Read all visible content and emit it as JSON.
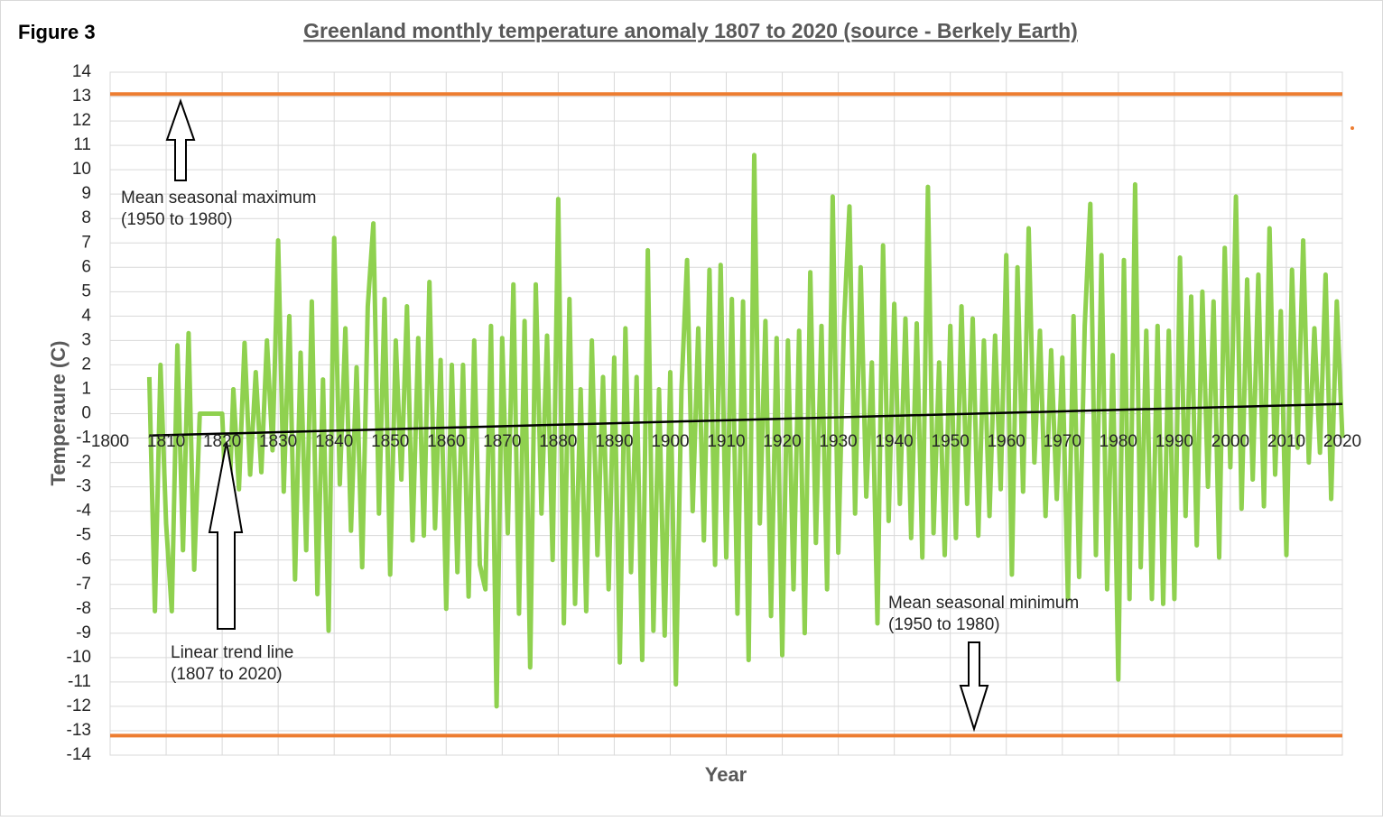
{
  "chart_data": {
    "type": "line",
    "figure_label": "Figure 3",
    "title": "Greenland monthly temperature anomaly 1807 to 2020 (source - Berkely Earth)",
    "xlabel": "Year",
    "ylabel": "Temperaure (C)",
    "xlim": [
      1800,
      2020
    ],
    "xticks": [
      1800,
      1810,
      1820,
      1830,
      1840,
      1850,
      1860,
      1870,
      1880,
      1890,
      1900,
      1910,
      1920,
      1930,
      1940,
      1950,
      1960,
      1970,
      1980,
      1990,
      2000,
      2010,
      2020
    ],
    "ylim": [
      -14,
      14
    ],
    "yticks": [
      -14,
      -13,
      -12,
      -11,
      -10,
      -9,
      -8,
      -7,
      -6,
      -5,
      -4,
      -3,
      -2,
      -1,
      0,
      1,
      2,
      3,
      4,
      5,
      6,
      7,
      8,
      9,
      10,
      11,
      12,
      13,
      14
    ],
    "grid": true,
    "series": [
      {
        "color": "#8fd14f",
        "x": [
          1807,
          1808,
          1809,
          1810,
          1811,
          1812,
          1813,
          1814,
          1815,
          1816,
          1817,
          1818,
          1819,
          1820,
          1821,
          1822,
          1823,
          1824,
          1825,
          1826,
          1827,
          1828,
          1829,
          1830,
          1831,
          1832,
          1833,
          1834,
          1835,
          1836,
          1837,
          1838,
          1839,
          1840,
          1841,
          1842,
          1843,
          1844,
          1845,
          1846,
          1847,
          1848,
          1849,
          1850,
          1851,
          1852,
          1853,
          1854,
          1855,
          1856,
          1857,
          1858,
          1859,
          1860,
          1861,
          1862,
          1863,
          1864,
          1865,
          1866,
          1867,
          1868,
          1869,
          1870,
          1871,
          1872,
          1873,
          1874,
          1875,
          1876,
          1877,
          1878,
          1879,
          1880,
          1881,
          1882,
          1883,
          1884,
          1885,
          1886,
          1887,
          1888,
          1889,
          1890,
          1891,
          1892,
          1893,
          1894,
          1895,
          1896,
          1897,
          1898,
          1899,
          1900,
          1901,
          1902,
          1903,
          1904,
          1905,
          1906,
          1907,
          1908,
          1909,
          1910,
          1911,
          1912,
          1913,
          1914,
          1915,
          1916,
          1917,
          1918,
          1919,
          1920,
          1921,
          1922,
          1923,
          1924,
          1925,
          1926,
          1927,
          1928,
          1929,
          1930,
          1931,
          1932,
          1933,
          1934,
          1935,
          1936,
          1937,
          1938,
          1939,
          1940,
          1941,
          1942,
          1943,
          1944,
          1945,
          1946,
          1947,
          1948,
          1949,
          1950,
          1951,
          1952,
          1953,
          1954,
          1955,
          1956,
          1957,
          1958,
          1959,
          1960,
          1961,
          1962,
          1963,
          1964,
          1965,
          1966,
          1967,
          1968,
          1969,
          1970,
          1971,
          1972,
          1973,
          1974,
          1975,
          1976,
          1977,
          1978,
          1979,
          1980,
          1981,
          1982,
          1983,
          1984,
          1985,
          1986,
          1987,
          1988,
          1989,
          1990,
          1991,
          1992,
          1993,
          1994,
          1995,
          1996,
          1997,
          1998,
          1999,
          2000,
          2001,
          2002,
          2003,
          2004,
          2005,
          2006,
          2007,
          2008,
          2009,
          2010,
          2011,
          2012,
          2013,
          2014,
          2015,
          2016,
          2017,
          2018,
          2019,
          2020
        ],
        "values": [
          1.5,
          -8.1,
          2.0,
          -4.5,
          -8.1,
          2.8,
          -5.6,
          3.3,
          -6.4,
          0,
          0,
          0,
          0,
          0,
          -5.3,
          1.0,
          -3.1,
          2.9,
          -2.5,
          1.7,
          -2.4,
          3.0,
          -1.5,
          7.1,
          -3.2,
          4.0,
          -6.8,
          2.5,
          -5.6,
          4.6,
          -7.4,
          1.4,
          -8.9,
          7.2,
          -2.9,
          3.5,
          -4.8,
          1.9,
          -6.3,
          4.4,
          7.8,
          -4.1,
          4.7,
          -6.6,
          3.0,
          -2.7,
          4.4,
          -5.2,
          3.1,
          -5.0,
          5.4,
          -4.7,
          2.2,
          -8.0,
          2.0,
          -6.5,
          2.0,
          -7.5,
          3.0,
          -6.2,
          -7.2,
          3.6,
          -12.0,
          3.1,
          -4.9,
          5.3,
          -8.2,
          3.8,
          -10.4,
          5.3,
          -4.1,
          3.2,
          -6.0,
          8.8,
          -8.6,
          4.7,
          -7.8,
          1.0,
          -8.1,
          3.0,
          -5.8,
          1.5,
          -7.2,
          2.3,
          -10.2,
          3.5,
          -6.5,
          1.5,
          -10.1,
          6.7,
          -8.9,
          1.0,
          -9.1,
          1.7,
          -11.1,
          1.0,
          6.3,
          -4.0,
          3.5,
          -5.2,
          5.9,
          -6.2,
          6.1,
          -5.9,
          4.7,
          -8.2,
          4.6,
          -10.1,
          10.6,
          -4.5,
          3.8,
          -8.3,
          3.1,
          -9.9,
          3.0,
          -7.2,
          3.4,
          -9.0,
          5.8,
          -5.3,
          3.6,
          -7.2,
          8.9,
          -5.7,
          3.6,
          8.5,
          -4.1,
          6.0,
          -3.4,
          2.1,
          -8.6,
          6.9,
          -4.4,
          4.5,
          -3.7,
          3.9,
          -5.1,
          3.7,
          -5.9,
          9.3,
          -4.9,
          2.1,
          -5.8,
          3.6,
          -5.1,
          4.4,
          -3.7,
          3.9,
          -5.0,
          3.0,
          -4.2,
          3.2,
          -3.1,
          6.5,
          -6.6,
          6.0,
          -3.2,
          7.6,
          -2.0,
          3.4,
          -4.2,
          2.6,
          -3.5,
          2.3,
          -7.6,
          4.0,
          -6.7,
          3.6,
          8.6,
          -5.8,
          6.5,
          -7.2,
          2.4,
          -10.9,
          6.3,
          -7.6,
          9.4,
          -6.3,
          3.4,
          -7.6,
          3.6,
          -7.8,
          3.4,
          -7.6,
          6.4,
          -4.2,
          4.8,
          -5.4,
          5.0,
          -3.0,
          4.6,
          -5.9,
          6.8,
          -2.2,
          8.9,
          -3.9,
          5.5,
          -2.7,
          5.7,
          -3.8,
          7.6,
          -2.5,
          4.2,
          -5.8,
          5.9,
          -1.4,
          7.1,
          -2.0,
          3.5,
          -1.6,
          5.7,
          -3.5,
          4.6,
          -1.0
        ]
      },
      {
        "color": "#ed7d31",
        "x": [
          1800,
          2020
        ],
        "values": [
          13.1,
          13.1
        ]
      },
      {
        "color": "#ed7d31",
        "x": [
          1800,
          2020
        ],
        "values": [
          -13.2,
          -13.2
        ]
      },
      {
        "color": "#000000",
        "x": [
          1807,
          2020
        ],
        "values": [
          -0.9,
          0.4
        ]
      }
    ],
    "annotations": [
      {
        "text": "Mean seasonal maximum"
      },
      {
        "text": "(1950 to  1980)"
      },
      {
        "text": "Linear trend line"
      },
      {
        "text": "(1807 to 2020)"
      },
      {
        "text": "Mean seasonal minimum"
      },
      {
        "text": "(1950 to 1980)"
      }
    ]
  }
}
